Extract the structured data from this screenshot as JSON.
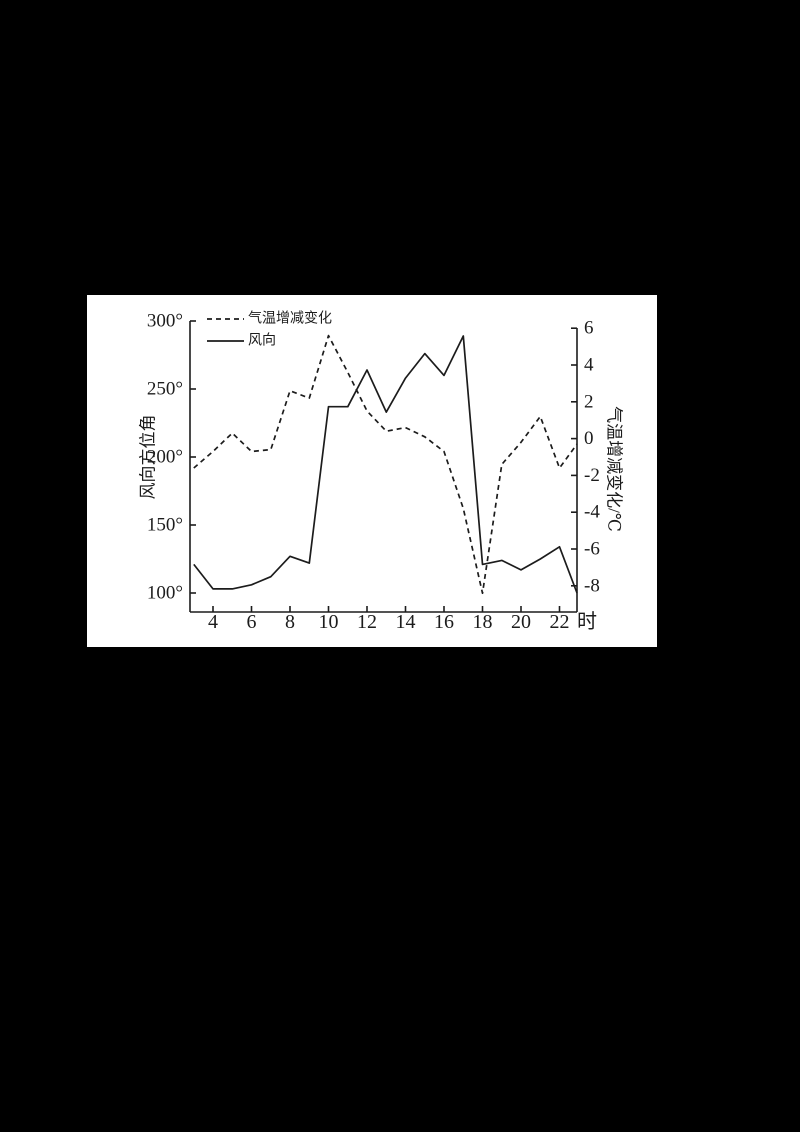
{
  "window": {
    "background": "#000000"
  },
  "figure": {
    "panel_background": "#ffffff",
    "line_color": "#1c1c1c"
  },
  "chart_data": {
    "type": "line",
    "title": "",
    "grid": false,
    "x_hours": [
      3,
      4,
      5,
      6,
      7,
      8,
      9,
      10,
      11,
      12,
      13,
      14,
      15,
      16,
      17,
      18,
      19,
      20,
      21,
      22,
      23
    ],
    "x_axis": {
      "unit_label": "时",
      "tick_values": [
        4,
        6,
        8,
        10,
        12,
        14,
        16,
        18,
        20,
        22
      ],
      "tick_labels": [
        "4",
        "6",
        "8",
        "10",
        "12",
        "14",
        "16",
        "18",
        "20",
        "22"
      ],
      "range": [
        3,
        23
      ]
    },
    "left_axis": {
      "title": "风向方位角",
      "tick_values": [
        300,
        250,
        200,
        150,
        100
      ],
      "tick_labels": [
        "300°",
        "250°",
        "200°",
        "150°",
        "100°"
      ],
      "range_shown": [
        100,
        300
      ]
    },
    "right_axis": {
      "title": "气温增减变化/℃",
      "tick_values": [
        6,
        4,
        2,
        0,
        -2,
        -4,
        -6,
        -8
      ],
      "tick_labels": [
        "6",
        "4",
        "2",
        "0",
        "-2",
        "-4",
        "-6",
        "-8"
      ],
      "range_shown": [
        -8,
        6
      ]
    },
    "series": [
      {
        "name": "气温增减变化",
        "axis": "right",
        "line_style": "dashed",
        "values": [
          -1.6,
          -0.7,
          0.3,
          -0.7,
          -0.6,
          2.6,
          2.2,
          5.6,
          3.6,
          1.5,
          0.4,
          0.6,
          0.1,
          -0.7,
          -3.8,
          -8.4,
          -1.4,
          -0.2,
          1.2,
          -1.6,
          -0.3
        ]
      },
      {
        "name": "风向",
        "axis": "left",
        "line_style": "solid",
        "values": [
          121,
          103,
          103,
          106,
          112,
          127,
          122,
          237,
          237,
          264,
          233,
          258,
          276,
          260,
          289,
          121,
          124,
          117,
          125,
          134,
          100
        ]
      }
    ],
    "legend": {
      "position": "top-left",
      "items": [
        {
          "label": "气温增减变化",
          "style": "dashed"
        },
        {
          "label": "风向",
          "style": "solid"
        }
      ]
    }
  }
}
